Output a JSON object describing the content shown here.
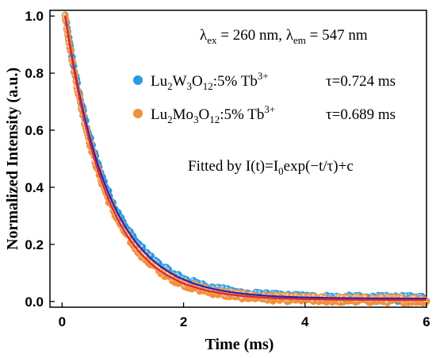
{
  "chart_data": {
    "type": "scatter",
    "xlabel": "Time (ms)",
    "ylabel": "Normalized Intensity (a.u.)",
    "xlim": [
      -0.2,
      6.0
    ],
    "ylim": [
      -0.02,
      1.02
    ],
    "xticks": [
      "0",
      "2",
      "4",
      "6"
    ],
    "yticks": [
      "0.0",
      "0.2",
      "0.4",
      "0.6",
      "0.8",
      "1.0"
    ],
    "xtick_values": [
      0,
      2,
      4,
      6
    ],
    "ytick_values": [
      0.0,
      0.2,
      0.4,
      0.6,
      0.8,
      1.0
    ],
    "grid": false,
    "legend_position": "top-right",
    "annotations": {
      "excitation": "λex = 260 nm, λem = 547 nm",
      "fit_formula": "Fitted by I(t)=I0exp(−t/τ)+c"
    },
    "series": [
      {
        "name": "Lu2W3O12:5% Tb3+",
        "tau_label": "τ=0.724 ms",
        "tau": 0.724,
        "offset": 0.01,
        "t_start": 0.05,
        "t_end": 6.0,
        "color": "#2a9ae0",
        "fit_color": "#2424b8"
      },
      {
        "name": "Lu2Mo3O12:5% Tb3+",
        "tau_label": "τ=0.689 ms",
        "tau": 0.689,
        "offset": 0.005,
        "t_start": 0.05,
        "t_end": 6.0,
        "color": "#f0913a",
        "fit_color": "#e0263c"
      }
    ]
  }
}
